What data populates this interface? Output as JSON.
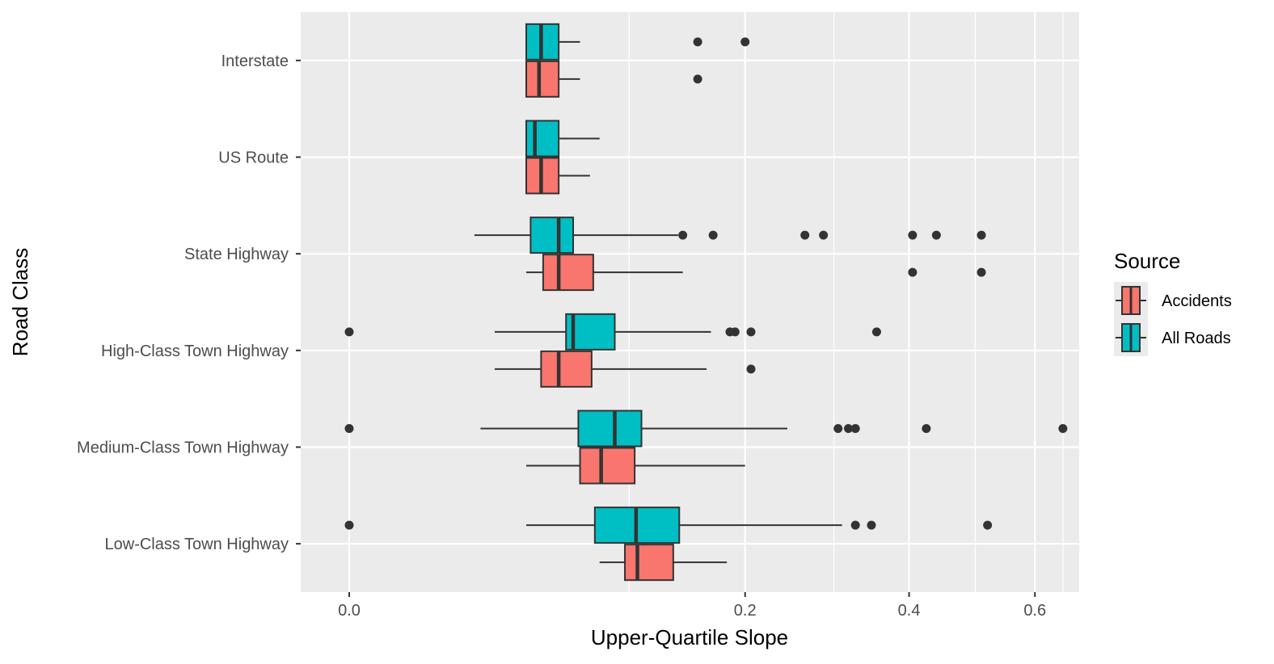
{
  "chart_data": {
    "type": "boxplot",
    "orientation": "horizontal",
    "title": "",
    "xlabel": "Upper-Quartile Slope",
    "ylabel": "Road Class",
    "x_scale": "sqrt",
    "xlim": [
      -0.003,
      0.68
    ],
    "x_ticks": [
      0.0,
      0.2,
      0.4,
      0.6
    ],
    "x_tick_labels": [
      "0.0",
      "0.2",
      "0.4",
      "0.6"
    ],
    "grid": true,
    "categories": [
      "Interstate",
      "US Route",
      "State Highway",
      "High-Class Town Highway",
      "Medium-Class Town Highway",
      "Low-Class Town Highway"
    ],
    "legend": {
      "title": "Source",
      "position": "right",
      "entries": [
        "Accidents",
        "All Roads"
      ]
    },
    "colors": {
      "Accidents": "#F8766D",
      "All Roads": "#00BFC4",
      "panel": "#EBEBEB",
      "grid": "#FFFFFF",
      "outline": "#333333"
    },
    "series": [
      {
        "name": "Accidents",
        "boxes": [
          {
            "category": "Interstate",
            "whisker_low": 0.04,
            "q1": 0.04,
            "median": 0.046,
            "q3": 0.056,
            "whisker_high": 0.068,
            "outliers": [
              0.155
            ]
          },
          {
            "category": "US Route",
            "whisker_low": 0.04,
            "q1": 0.04,
            "median": 0.047,
            "q3": 0.056,
            "whisker_high": 0.074,
            "outliers": []
          },
          {
            "category": "State Highway",
            "whisker_low": 0.04,
            "q1": 0.048,
            "median": 0.056,
            "q3": 0.076,
            "whisker_high": 0.142,
            "outliers": [
              0.405,
              0.51
            ]
          },
          {
            "category": "High-Class Town Highway",
            "whisker_low": 0.027,
            "q1": 0.047,
            "median": 0.056,
            "q3": 0.075,
            "whisker_high": 0.163,
            "outliers": [
              0.206
            ]
          },
          {
            "category": "Medium-Class Town Highway",
            "whisker_low": 0.04,
            "q1": 0.068,
            "median": 0.081,
            "q3": 0.104,
            "whisker_high": 0.2,
            "outliers": []
          },
          {
            "category": "Low-Class Town Highway",
            "whisker_low": 0.08,
            "q1": 0.097,
            "median": 0.106,
            "q3": 0.134,
            "whisker_high": 0.182,
            "outliers": []
          }
        ]
      },
      {
        "name": "All Roads",
        "boxes": [
          {
            "category": "Interstate",
            "whisker_low": 0.04,
            "q1": 0.04,
            "median": 0.047,
            "q3": 0.056,
            "whisker_high": 0.068,
            "outliers": [
              0.155,
              0.2
            ]
          },
          {
            "category": "US Route",
            "whisker_low": 0.04,
            "q1": 0.04,
            "median": 0.044,
            "q3": 0.056,
            "whisker_high": 0.08,
            "outliers": []
          },
          {
            "category": "State Highway",
            "whisker_low": 0.02,
            "q1": 0.042,
            "median": 0.056,
            "q3": 0.064,
            "whisker_high": 0.138,
            "outliers": [
              0.142,
              0.169,
              0.265,
              0.287,
              0.405,
              0.44,
              0.51
            ]
          },
          {
            "category": "High-Class Town Highway",
            "whisker_low": 0.027,
            "q1": 0.06,
            "median": 0.064,
            "q3": 0.09,
            "whisker_high": 0.167,
            "outliers": [
              0,
              0.185,
              0.19,
              0.206,
              0.355
            ]
          },
          {
            "category": "Medium-Class Town Highway",
            "whisker_low": 0.022,
            "q1": 0.067,
            "median": 0.09,
            "q3": 0.109,
            "whisker_high": 0.245,
            "outliers": [
              0,
              0.305,
              0.318,
              0.327,
              0.425,
              0.65
            ]
          },
          {
            "category": "Low-Class Town Highway",
            "whisker_low": 0.04,
            "q1": 0.077,
            "median": 0.105,
            "q3": 0.139,
            "whisker_high": 0.31,
            "outliers": [
              0,
              0.327,
              0.348,
              0.52
            ]
          }
        ]
      }
    ]
  }
}
